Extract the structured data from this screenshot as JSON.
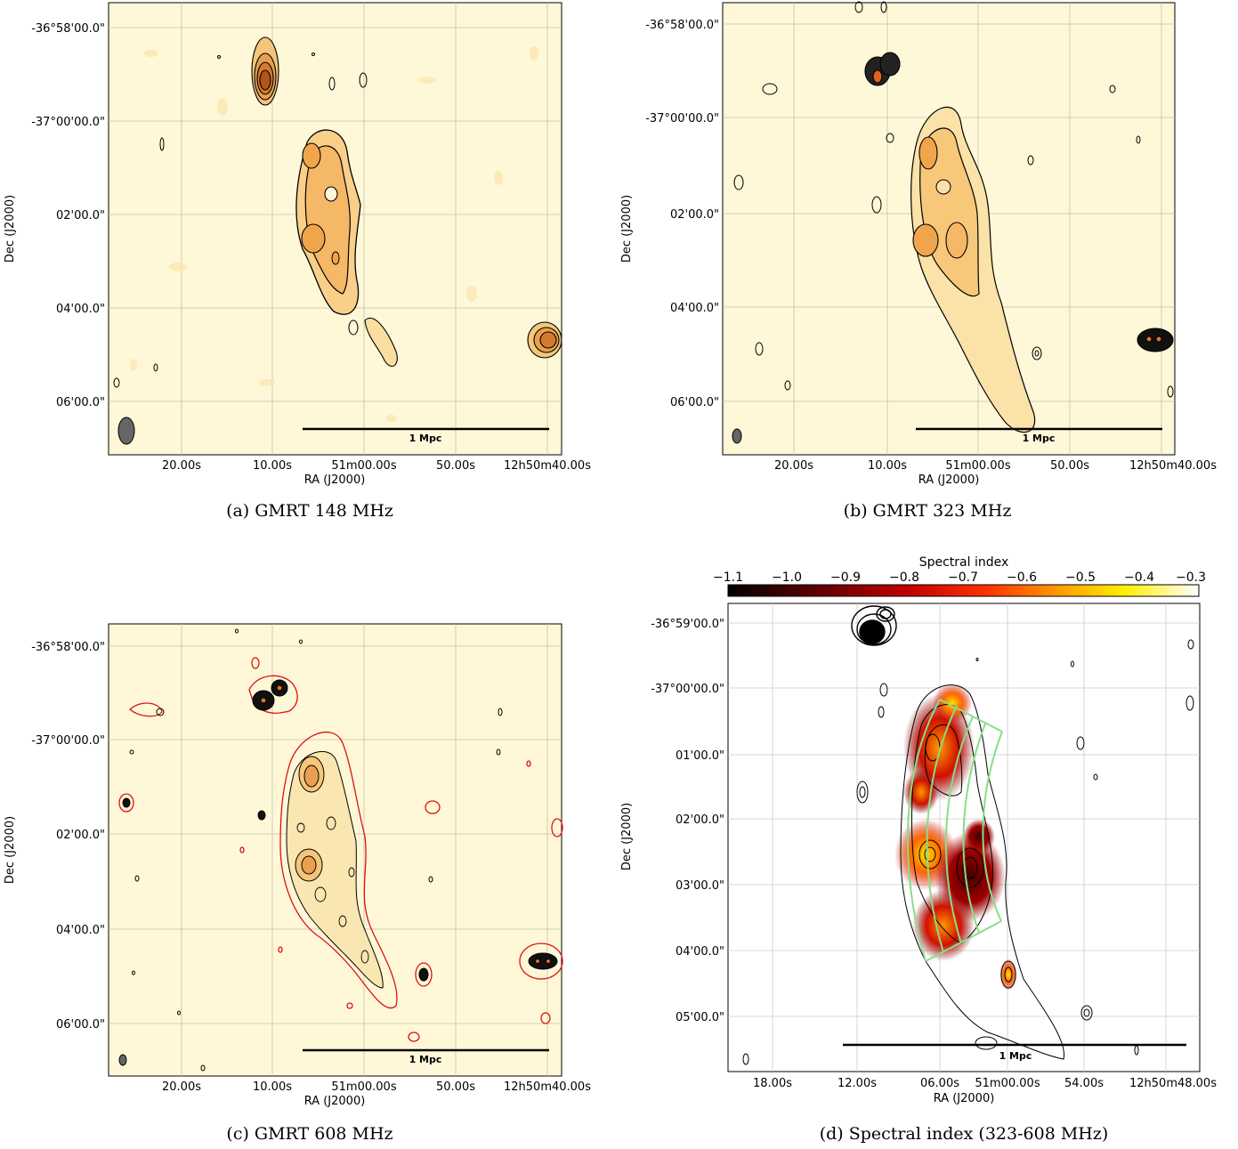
{
  "panels": [
    {
      "caption": "(a)  GMRT 148 MHz",
      "ylabel": "Dec (J2000)",
      "xlabel": "RA (J2000)",
      "yticks": [
        "-36°58'00.0\"",
        "-37°00'00.0\"",
        "02'00.0\"",
        "04'00.0\"",
        "06'00.0\""
      ],
      "xticks": [
        "20.00s",
        "10.00s",
        "51m00.00s",
        "50.00s",
        "12h50m40.00s"
      ],
      "scalebar": "1 Mpc"
    },
    {
      "caption": "(b)  GMRT 323 MHz",
      "ylabel": "Dec (J2000)",
      "xlabel": "RA (J2000)",
      "yticks": [
        "-36°58'00.0\"",
        "-37°00'00.0\"",
        "02'00.0\"",
        "04'00.0\"",
        "06'00.0\""
      ],
      "xticks": [
        "20.00s",
        "10.00s",
        "51m00.00s",
        "50.00s",
        "12h50m40.00s"
      ],
      "scalebar": "1 Mpc"
    },
    {
      "caption": "(c)  GMRT 608 MHz",
      "ylabel": "Dec (J2000)",
      "xlabel": "RA (J2000)",
      "yticks": [
        "-36°58'00.0\"",
        "-37°00'00.0\"",
        "02'00.0\"",
        "04'00.0\"",
        "06'00.0\""
      ],
      "xticks": [
        "20.00s",
        "10.00s",
        "51m00.00s",
        "50.00s",
        "12h50m40.00s"
      ],
      "scalebar": "1 Mpc"
    },
    {
      "caption": "(d)  Spectral index (323-608 MHz)",
      "ylabel": "Dec (J2000)",
      "xlabel": "RA (J2000)",
      "yticks": [
        "-36°59'00.0\"",
        "-37°00'00.0\"",
        "01'00.0\"",
        "02'00.0\"",
        "03'00.0\"",
        "04'00.0\"",
        "05'00.0\""
      ],
      "xticks": [
        "18.00s",
        "12.00s",
        "06.00s",
        "51m00.00s",
        "54.00s",
        "12h50m48.00s"
      ],
      "scalebar": "1 Mpc",
      "colorbar": {
        "title": "Spectral index",
        "ticks": [
          "−1.1",
          "−1.0",
          "−0.9",
          "−0.8",
          "−0.7",
          "−0.6",
          "−0.5",
          "−0.4",
          "−0.3"
        ]
      }
    }
  ],
  "colors": {
    "background": "#fff8d8",
    "contour": "#000000",
    "red_contour": "#dd1111",
    "region": "#88dd88",
    "grid": "#b8b8a8"
  }
}
